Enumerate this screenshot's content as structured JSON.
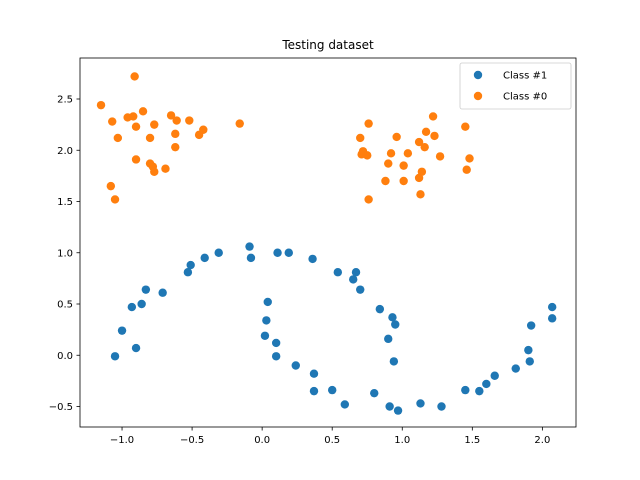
{
  "chart_data": {
    "type": "scatter",
    "title": "Testing dataset",
    "xlabel": "",
    "ylabel": "",
    "xlim": [
      -1.3,
      2.24
    ],
    "ylim": [
      -0.7,
      2.9
    ],
    "grid": false,
    "legend_position": "top-right",
    "x_ticks": [
      -1.0,
      -0.5,
      0.0,
      0.5,
      1.0,
      1.5,
      2.0
    ],
    "x_tick_labels": [
      "−1.0",
      "−0.5",
      "0.0",
      "0.5",
      "1.0",
      "1.5",
      "2.0"
    ],
    "y_ticks": [
      -0.5,
      0.0,
      0.5,
      1.0,
      1.5,
      2.0,
      2.5
    ],
    "y_tick_labels": [
      "−0.5",
      "0.0",
      "0.5",
      "1.0",
      "1.5",
      "2.0",
      "2.5"
    ],
    "series": [
      {
        "name": "Class #1",
        "color": "#1f77b4",
        "points": [
          [
            -1.05,
            -0.01
          ],
          [
            -1.0,
            0.24
          ],
          [
            -0.93,
            0.47
          ],
          [
            -0.9,
            0.07
          ],
          [
            -0.86,
            0.5
          ],
          [
            -0.83,
            0.64
          ],
          [
            -0.71,
            0.61
          ],
          [
            -0.53,
            0.81
          ],
          [
            -0.51,
            0.88
          ],
          [
            -0.41,
            0.95
          ],
          [
            -0.31,
            1.0
          ],
          [
            -0.09,
            1.06
          ],
          [
            -0.08,
            0.95
          ],
          [
            0.02,
            0.19
          ],
          [
            0.03,
            0.34
          ],
          [
            0.04,
            0.52
          ],
          [
            0.1,
            -0.01
          ],
          [
            0.1,
            0.12
          ],
          [
            0.11,
            1.0
          ],
          [
            0.19,
            1.0
          ],
          [
            0.24,
            -0.1
          ],
          [
            0.36,
            0.94
          ],
          [
            0.37,
            -0.18
          ],
          [
            0.37,
            -0.35
          ],
          [
            0.5,
            -0.34
          ],
          [
            0.54,
            0.81
          ],
          [
            0.59,
            -0.48
          ],
          [
            0.65,
            0.74
          ],
          [
            0.67,
            0.81
          ],
          [
            0.7,
            0.64
          ],
          [
            0.8,
            -0.37
          ],
          [
            0.84,
            0.45
          ],
          [
            0.9,
            0.16
          ],
          [
            0.91,
            -0.5
          ],
          [
            0.93,
            0.37
          ],
          [
            0.94,
            -0.06
          ],
          [
            0.95,
            0.3
          ],
          [
            0.97,
            -0.54
          ],
          [
            1.13,
            -0.47
          ],
          [
            1.28,
            -0.5
          ],
          [
            1.45,
            -0.34
          ],
          [
            1.55,
            -0.35
          ],
          [
            1.6,
            -0.28
          ],
          [
            1.66,
            -0.2
          ],
          [
            1.81,
            -0.13
          ],
          [
            1.9,
            0.05
          ],
          [
            1.91,
            -0.06
          ],
          [
            1.92,
            0.29
          ],
          [
            2.07,
            0.47
          ],
          [
            2.07,
            0.36
          ]
        ]
      },
      {
        "name": "Class #0",
        "color": "#ff7f0e",
        "points": [
          [
            -1.15,
            2.44
          ],
          [
            -1.08,
            1.65
          ],
          [
            -1.07,
            2.28
          ],
          [
            -1.05,
            1.52
          ],
          [
            -1.03,
            2.12
          ],
          [
            -0.96,
            2.32
          ],
          [
            -0.92,
            2.33
          ],
          [
            -0.91,
            2.72
          ],
          [
            -0.9,
            2.23
          ],
          [
            -0.9,
            1.91
          ],
          [
            -0.85,
            2.38
          ],
          [
            -0.8,
            1.87
          ],
          [
            -0.8,
            2.12
          ],
          [
            -0.78,
            1.84
          ],
          [
            -0.77,
            2.25
          ],
          [
            -0.77,
            1.79
          ],
          [
            -0.69,
            1.82
          ],
          [
            -0.65,
            2.34
          ],
          [
            -0.62,
            2.03
          ],
          [
            -0.62,
            2.16
          ],
          [
            -0.61,
            2.29
          ],
          [
            -0.52,
            2.29
          ],
          [
            -0.45,
            2.15
          ],
          [
            -0.42,
            2.2
          ],
          [
            -0.16,
            2.26
          ],
          [
            0.7,
            2.12
          ],
          [
            0.71,
            1.96
          ],
          [
            0.72,
            1.99
          ],
          [
            0.75,
            1.95
          ],
          [
            0.76,
            2.26
          ],
          [
            0.76,
            1.52
          ],
          [
            0.88,
            1.7
          ],
          [
            0.9,
            1.87
          ],
          [
            0.92,
            1.97
          ],
          [
            0.96,
            2.13
          ],
          [
            1.01,
            1.85
          ],
          [
            1.01,
            1.7
          ],
          [
            1.04,
            1.97
          ],
          [
            1.12,
            1.73
          ],
          [
            1.12,
            2.08
          ],
          [
            1.13,
            1.57
          ],
          [
            1.14,
            1.79
          ],
          [
            1.16,
            2.03
          ],
          [
            1.17,
            2.18
          ],
          [
            1.22,
            2.33
          ],
          [
            1.23,
            2.14
          ],
          [
            1.27,
            1.94
          ],
          [
            1.45,
            2.23
          ],
          [
            1.46,
            1.81
          ],
          [
            1.48,
            1.92
          ]
        ]
      }
    ]
  }
}
